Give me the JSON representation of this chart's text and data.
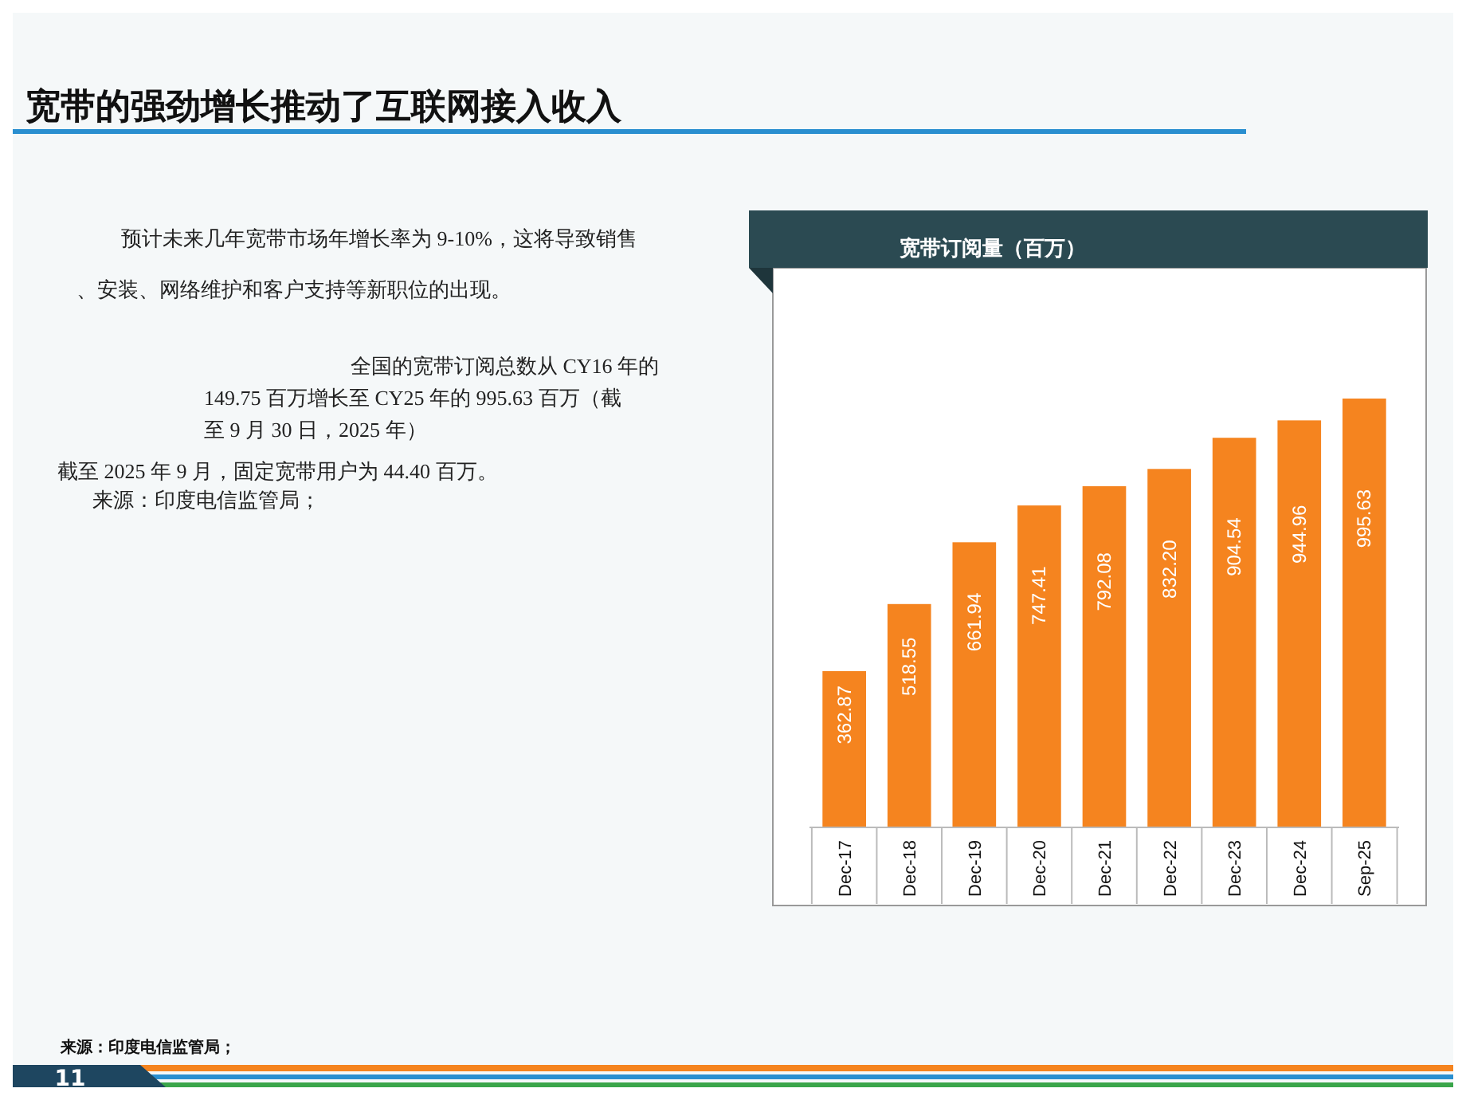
{
  "chart_data": {
    "type": "bar",
    "title": "宽带订阅量（百万）",
    "categories": [
      "Dec-17",
      "Dec-18",
      "Dec-19",
      "Dec-20",
      "Dec-21",
      "Dec-22",
      "Dec-23",
      "Dec-24",
      "Sep-25"
    ],
    "values": [
      362.87,
      518.55,
      661.94,
      747.41,
      792.08,
      832.2,
      904.54,
      944.96,
      995.63
    ],
    "value_labels": [
      "362.87",
      "518.55",
      "661.94",
      "747.41",
      "792.08",
      "832.20",
      "904.54",
      "944.96",
      "995.63"
    ],
    "color": "#f5841f",
    "annotations": [
      "宽带的强劲增长推动了互联网接入收入",
      "预计未来几年宽带市场年增长率为 9-10%，这将导致销售、安装、网络维护和客户支持等新职位的出现。",
      "全国的宽带订阅总数从 CY16 年的 149.75 百万增长至 CY25 年的 995.63 百万（截至 9 月 30 日，2025 年）",
      "截至 2025 年 9 月，固定宽带用户为 44.40 百万。",
      "来源：印度电信监管局；",
      "来源：印度电信监管局；",
      "11"
    ]
  }
}
